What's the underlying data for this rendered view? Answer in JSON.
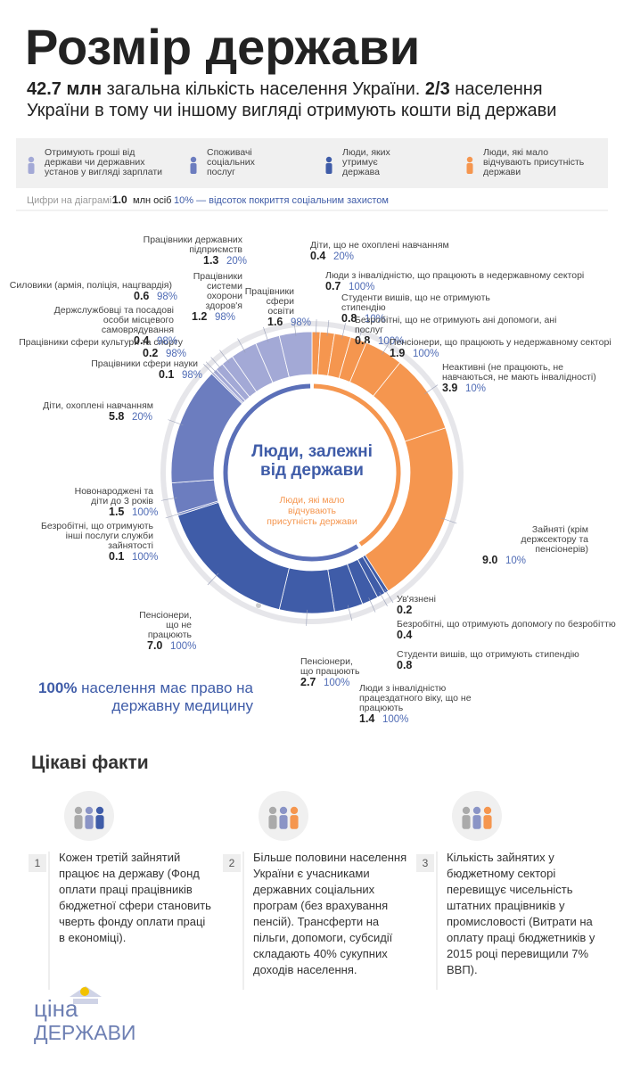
{
  "header": {
    "title": "Розмір держави",
    "subtitle": [
      "42.7 млн",
      " загальна кількість населення України. ",
      "2/3",
      " населення України в тому чи іншому вигляді отримують кошти від держави"
    ]
  },
  "legend_note": {
    "label": "Цифри на діаграмі:",
    "value_example": "1.0",
    "unit": "млн осіб",
    "coverage_example": "10% — відсоток покриття соціальним захистом"
  },
  "chart_data": {
    "type": "donut",
    "center_title": "Люди, залежні від держави",
    "inner_label": "Люди, які мало відчувають присутність держави",
    "series": [
      {
        "name": "Люди, які мало відчувають присутність держави",
        "color": "#f5964f",
        "group": "outside",
        "labels": [
          "Діти, що не охоплені навчанням",
          "Люди з інвалідністю, що працюють в недержавному секторі",
          "Студенти вишів, що не отримують стипендію",
          "Безробітні, що не отримують ані допомоги, ані послуг",
          "Пенсіонери, що працюють у недержавному секторі",
          "Неактивні (не працюють, не навчаються, не мають інвалідності)",
          "Зайняті (крім держсектору та пенсіонерів)"
        ],
        "values": [
          0.4,
          0.7,
          0.8,
          0.8,
          1.9,
          3.9,
          9.0
        ],
        "value_labels": [
          "0.4",
          "0.7",
          "0.8",
          "0.8",
          "1.9",
          "3.9",
          "9.0"
        ],
        "coverage": [
          "20%",
          "100%",
          "10%",
          "100%",
          "100%",
          "10%",
          "10%"
        ]
      },
      {
        "name": "Люди, яких утримує держава",
        "color": "#3f5ca8",
        "group": "dependent",
        "labels": [
          "Ув'язнені",
          "Безробітні, що отримують допомогу по безробіттю",
          "Студенти вишів, що отримують стипендію",
          "Люди з інвалідністю працездатного віку, що не працюють",
          "Пенсіонери, що працюють",
          "Пенсіонери, що не працюють"
        ],
        "values": [
          0.2,
          0.4,
          0.8,
          1.4,
          2.7,
          7.0
        ],
        "value_labels": [
          "0.2",
          "0.4",
          "0.8",
          "1.4",
          "2.7",
          "7.0"
        ],
        "coverage": [
          null,
          null,
          null,
          "100%",
          "100%",
          "100%"
        ]
      },
      {
        "name": "Споживачі соціальних послуг",
        "color": "#6c7dbf",
        "group": "dependent",
        "labels": [
          "Безробітні, що отримують інші послуги служби зайнятості",
          "Новонароджені та діти до 3 років",
          "Діти, охоплені навчанням"
        ],
        "values": [
          0.1,
          1.5,
          5.8
        ],
        "value_labels": [
          "0.1",
          "1.5",
          "5.8"
        ],
        "coverage": [
          "100%",
          "100%",
          "20%"
        ]
      },
      {
        "name": "Отримують гроші від держави чи державних установ у вигляді зарплати",
        "color": "#a3a9d6",
        "group": "dependent",
        "labels": [
          "Працівники сфери науки",
          "Працівники сфери культури та спорту",
          "Держслужбовці та посадові особи місцевого самоврядування",
          "Силовики (армія, поліція, нацгвардія)",
          "Працівники державних підприємств",
          "Працівники системи охорони здоров'я",
          "Працівники сфери освіти"
        ],
        "values": [
          0.1,
          0.2,
          0.4,
          0.6,
          1.3,
          1.2,
          1.6
        ],
        "value_labels": [
          "0.1",
          "0.2",
          "0.4",
          "0.6",
          "1.3",
          "1.2",
          "1.6"
        ],
        "coverage": [
          "98%",
          "98%",
          "98%",
          "98%",
          "20%",
          "98%",
          "98%"
        ]
      }
    ]
  },
  "medicine_note": [
    "100%",
    "населення має право на державну медицину"
  ],
  "facts": {
    "title": "Цікаві факти",
    "items": [
      {
        "number": 1,
        "text": "Кожен третій зайнятий працює на державу (Фонд оплати праці працівників бюджетної сфери становить чверть фонду оплати праці в економіці)."
      },
      {
        "number": 2,
        "text": "Більше половини населення України є учасниками державних соціальних програм (без врахування пенсій). Трансферти на пільги, допомоги, субсидії складають 40% сукупних доходів населення."
      },
      {
        "number": 3,
        "text": "Кількість зайнятих у бюджетному секторі перевищує чисельність штатних працівників у промисловості (Витрати на оплату праці бюджетників у 2015 році перевищили 7% ВВП)."
      }
    ]
  },
  "logo": [
    "ціна",
    "ДЕРЖАВИ"
  ]
}
